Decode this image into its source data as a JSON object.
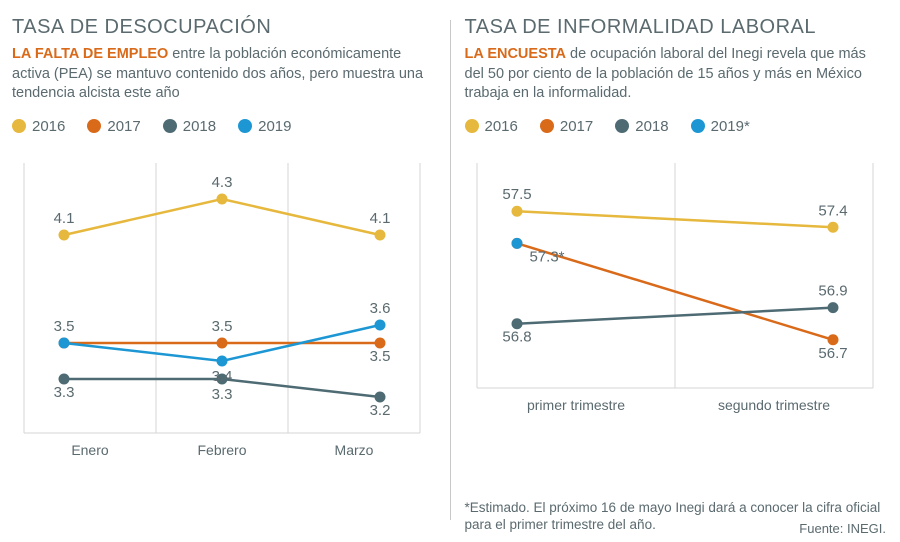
{
  "colors": {
    "y2016": "#e6b83d",
    "y2017": "#d96a1a",
    "y2018": "#4e6b74",
    "y2019": "#1c97d4",
    "grid": "#d6d6d6",
    "text": "#5a6a6f",
    "bg": "#ffffff"
  },
  "left": {
    "title": "TASA DE DESOCUPACIÓN",
    "lead": "LA FALTA DE EMPLEO",
    "subtitle_rest": " entre la población económicamente activa (PEA) se mantuvo contenido dos años, pero muestra una tendencia alcista este año",
    "legend": [
      {
        "label": "2016",
        "color": "#e6b83d"
      },
      {
        "label": "2017",
        "color": "#d96a1a"
      },
      {
        "label": "2018",
        "color": "#4e6b74"
      },
      {
        "label": "2019",
        "color": "#1c97d4"
      }
    ],
    "chart": {
      "type": "line",
      "categories": [
        "Enero",
        "Febrero",
        "Marzo"
      ],
      "ylim": [
        3.0,
        4.5
      ],
      "series": [
        {
          "name": "2016",
          "color": "#e6b83d",
          "values": [
            4.1,
            4.3,
            4.1
          ]
        },
        {
          "name": "2017",
          "color": "#d96a1a",
          "values": [
            3.5,
            3.5,
            3.5
          ]
        },
        {
          "name": "2018",
          "color": "#4e6b74",
          "values": [
            3.3,
            3.3,
            3.2
          ]
        },
        {
          "name": "2019",
          "color": "#1c97d4",
          "values": [
            3.5,
            3.4,
            3.6
          ]
        }
      ],
      "labels": [
        {
          "text": "4.1",
          "series": 0,
          "i": 0,
          "dy": -12
        },
        {
          "text": "4.3",
          "series": 0,
          "i": 1,
          "dy": -12
        },
        {
          "text": "4.1",
          "series": 0,
          "i": 2,
          "dy": -12
        },
        {
          "text": "3.5",
          "series": 1,
          "i": 0,
          "dy": -12
        },
        {
          "text": "3.5",
          "series": 1,
          "i": 1,
          "dy": -12
        },
        {
          "text": "3.5",
          "series": 1,
          "i": 2,
          "dy": 18
        },
        {
          "text": "3.3",
          "series": 2,
          "i": 0,
          "dy": 18
        },
        {
          "text": "3.3",
          "series": 2,
          "i": 1,
          "dy": 20
        },
        {
          "text": "3.2",
          "series": 2,
          "i": 2,
          "dy": 18
        },
        {
          "text": "3.4",
          "series": 3,
          "i": 1,
          "dy": 20
        },
        {
          "text": "3.6",
          "series": 3,
          "i": 2,
          "dy": -12
        }
      ],
      "line_width": 2.5,
      "marker_radius": 5.5
    }
  },
  "right": {
    "title": "TASA DE INFORMALIDAD LABORAL",
    "lead": "LA ENCUESTA",
    "subtitle_rest": " de ocupación laboral del Inegi revela que más del 50 por ciento de la población de 15 años y más en México trabaja en la informalidad.",
    "legend": [
      {
        "label": "2016",
        "color": "#e6b83d"
      },
      {
        "label": "2017",
        "color": "#d96a1a"
      },
      {
        "label": "2018",
        "color": "#4e6b74"
      },
      {
        "label": "2019*",
        "color": "#1c97d4"
      }
    ],
    "chart": {
      "type": "line",
      "categories": [
        "primer trimestre",
        "segundo trimestre"
      ],
      "ylim": [
        56.4,
        57.8
      ],
      "series": [
        {
          "name": "2016",
          "color": "#e6b83d",
          "values": [
            57.5,
            57.4
          ]
        },
        {
          "name": "2017",
          "color": "#d96a1a",
          "values": [
            57.3,
            56.7
          ]
        },
        {
          "name": "2018",
          "color": "#4e6b74",
          "values": [
            56.8,
            56.9
          ]
        },
        {
          "name": "2019",
          "color": "#1c97d4",
          "values": [
            57.3,
            null
          ]
        }
      ],
      "labels": [
        {
          "text": "57.5",
          "series": 0,
          "i": 0,
          "dy": -12
        },
        {
          "text": "57.4",
          "series": 0,
          "i": 1,
          "dy": -12
        },
        {
          "text": "57.3*",
          "series": 3,
          "i": 0,
          "dy": 18,
          "dx": 30
        },
        {
          "text": "56.8",
          "series": 2,
          "i": 0,
          "dy": 18
        },
        {
          "text": "56.9",
          "series": 2,
          "i": 1,
          "dy": -12
        },
        {
          "text": "56.7",
          "series": 1,
          "i": 1,
          "dy": 18
        }
      ],
      "line_width": 2.5,
      "marker_radius": 5.5
    },
    "footnote": "*Estimado. El próximo 16 de mayo Inegi dará a conocer la cifra oficial para el primer trimestre del año."
  },
  "source": "Fuente: INEGI."
}
